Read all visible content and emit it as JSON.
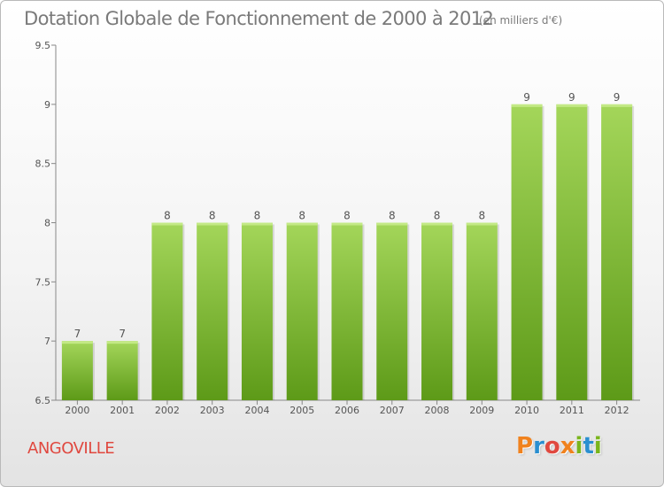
{
  "header": {
    "title": "Dotation Globale de Fonctionnement de 2000 à 2012",
    "unit": "(en milliers d'€)"
  },
  "footer": {
    "commune": "ANGOVILLE",
    "logo_text": "Proxiti"
  },
  "colors": {
    "bar_light": "#a4d65a",
    "bar_dark": "#5d9a18",
    "title": "#7a7a7a",
    "commune": "#e0483f",
    "logo": [
      "#f0821e",
      "#2a8fd0",
      "#e0483f",
      "#f0821e",
      "#7ab51d",
      "#2a8fd0",
      "#7ab51d"
    ]
  },
  "chart_data": {
    "type": "bar",
    "title": "Dotation Globale de Fonctionnement de 2000 à 2012",
    "xlabel": "",
    "ylabel": "",
    "categories": [
      "2000",
      "2001",
      "2002",
      "2003",
      "2004",
      "2005",
      "2006",
      "2007",
      "2008",
      "2009",
      "2010",
      "2011",
      "2012"
    ],
    "values": [
      7,
      7,
      8,
      8,
      8,
      8,
      8,
      8,
      8,
      8,
      9,
      9,
      9
    ],
    "labels": [
      "7",
      "7",
      "8",
      "8",
      "8",
      "8",
      "8",
      "8",
      "8",
      "8",
      "9",
      "9",
      "9"
    ],
    "ylim": [
      6.5,
      9.5
    ],
    "yticks": [
      6.5,
      7,
      7.5,
      8,
      8.5,
      9,
      9.5
    ],
    "ytick_labels": [
      "6.5",
      "7",
      "7.5",
      "8",
      "8.5",
      "9",
      "9.5"
    ],
    "grid": false
  }
}
